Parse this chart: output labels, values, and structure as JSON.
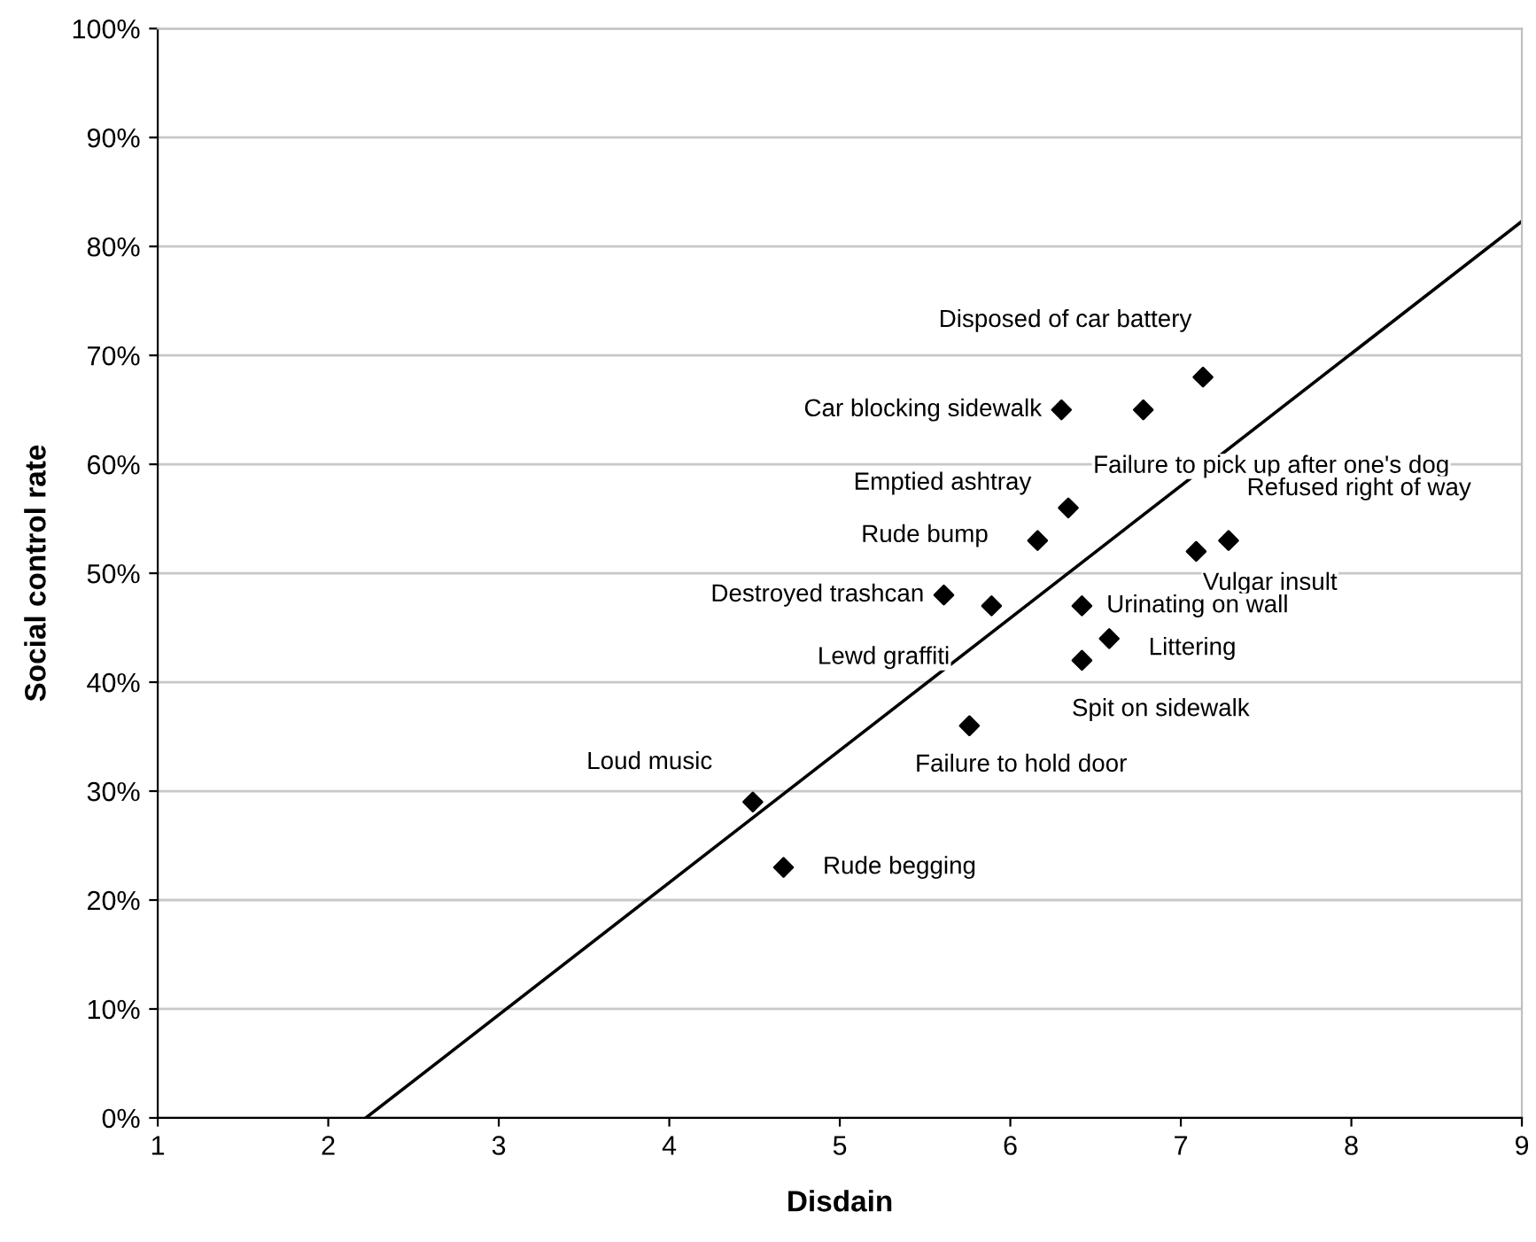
{
  "chart_data": {
    "type": "scatter",
    "xlabel": "Disdain",
    "ylabel": "Social control rate",
    "xlim": [
      1,
      9
    ],
    "xticks": [
      1,
      2,
      3,
      4,
      5,
      6,
      7,
      8,
      9
    ],
    "ylim": [
      0,
      100
    ],
    "yticks": [
      {
        "value": 0,
        "label": "0%"
      },
      {
        "value": 10,
        "label": "10%"
      },
      {
        "value": 20,
        "label": "20%"
      },
      {
        "value": 30,
        "label": "30%"
      },
      {
        "value": 40,
        "label": "40%"
      },
      {
        "value": 50,
        "label": "50%"
      },
      {
        "value": 60,
        "label": "60%"
      },
      {
        "value": 70,
        "label": "70%"
      },
      {
        "value": 80,
        "label": "80%"
      },
      {
        "value": 90,
        "label": "90%"
      },
      {
        "value": 100,
        "label": "100%"
      }
    ],
    "grid": "y",
    "legend": false,
    "series": [
      {
        "type": "scatter",
        "color": "#000000",
        "marker": "diamond",
        "x": [
          7.13,
          6.3,
          6.78,
          6.34,
          6.16,
          7.28,
          7.09,
          5.61,
          5.89,
          6.42,
          6.58,
          6.42,
          5.76,
          4.49,
          4.67
        ],
        "values": [
          68,
          65,
          65,
          56,
          53,
          53,
          52,
          48,
          47,
          47,
          44,
          42,
          36,
          29,
          23
        ]
      },
      {
        "type": "line",
        "color": "#000000",
        "marker": "none",
        "line_style": "solid",
        "x": [
          2.22,
          9
        ],
        "values": [
          0,
          82.3
        ]
      }
    ],
    "annotations": [
      {
        "text": "Disposed of car battery",
        "x": 7.13,
        "y": 68
      },
      {
        "text": "Car blocking sidewalk",
        "x": 6.3,
        "y": 65
      },
      {
        "text": "Failure to pick up after one's dog",
        "x": 6.78,
        "y": 65
      },
      {
        "text": "Emptied ashtray",
        "x": 6.34,
        "y": 56
      },
      {
        "text": "Rude bump",
        "x": 6.16,
        "y": 53
      },
      {
        "text": "Refused right of way",
        "x": 7.28,
        "y": 53
      },
      {
        "text": "Vulgar insult",
        "x": 7.09,
        "y": 52
      },
      {
        "text": "Destroyed trashcan",
        "x": 5.61,
        "y": 48
      },
      {
        "text": "Lewd graffiti",
        "x": 5.89,
        "y": 47
      },
      {
        "text": "Urinating on wall",
        "x": 6.42,
        "y": 47
      },
      {
        "text": "Littering",
        "x": 6.58,
        "y": 44
      },
      {
        "text": "Spit on sidewalk",
        "x": 6.42,
        "y": 42
      },
      {
        "text": "Failure to hold door",
        "x": 5.76,
        "y": 36
      },
      {
        "text": "Loud music",
        "x": 4.49,
        "y": 29
      },
      {
        "text": "Rude begging",
        "x": 4.67,
        "y": 23
      }
    ]
  }
}
